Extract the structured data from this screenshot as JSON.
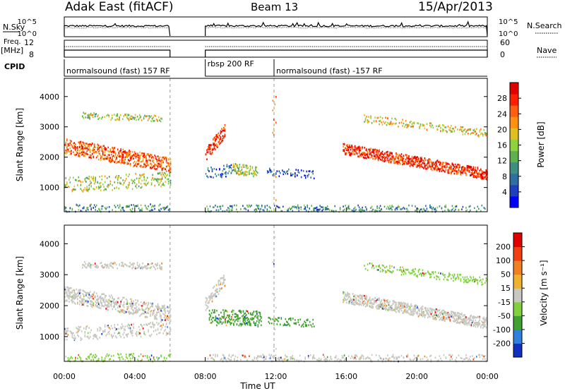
{
  "header": {
    "station": "Adak East (fitACF)",
    "beam": "Beam 13",
    "date": "15/Apr/2013"
  },
  "chart_data": [
    {
      "type": "line",
      "panel": "noise",
      "left_label": "N.Sky",
      "right_label": "N.Search",
      "left_ticks": [
        "10^5",
        "10^0"
      ],
      "right_ticks": [
        "10^5",
        "10^0"
      ],
      "x": [
        0,
        6,
        8,
        24
      ],
      "gap": [
        6,
        8
      ],
      "series": [
        {
          "name": "N.Sky",
          "style": "solid"
        },
        {
          "name": "N.Search",
          "style": "dotted"
        }
      ]
    },
    {
      "type": "line",
      "panel": "frequency",
      "left_label_top": "Freq.",
      "left_label_bottom": "[MHz]",
      "right_label": "Nave",
      "left_ticks": [
        "12",
        "8"
      ],
      "right_ticks": [
        "60",
        "0"
      ],
      "gap": [
        6,
        8
      ],
      "series": [
        {
          "name": "Freq.",
          "style": "solid"
        },
        {
          "name": "Nave",
          "style": "dotted"
        }
      ]
    },
    {
      "type": "table",
      "panel": "cpid",
      "label": "CPID",
      "segments": [
        {
          "start": 0,
          "end": 6,
          "label": "normalsound (fast) 157 RF"
        },
        {
          "start": 8,
          "end": 11.9,
          "label": "rbsp 200 RF"
        },
        {
          "start": 11.9,
          "end": 24,
          "label": "normalsound (fast) -157 RF"
        }
      ]
    },
    {
      "type": "heatmap",
      "panel": "power",
      "ylabel": "Slant Range [km]",
      "xlim": [
        0,
        24
      ],
      "ylim": [
        200,
        4600
      ],
      "yticks": [
        1000,
        2000,
        3000,
        4000
      ],
      "colorbar_label": "Power [dB]",
      "colorbar_ticks": [
        "28",
        "24",
        "20",
        "16",
        "12",
        "8",
        "4"
      ],
      "colors": [
        "#0000ff",
        "#1f3fbf",
        "#2f6fa0",
        "#3f8f7f",
        "#5fb04f",
        "#8fd03f",
        "#e0c020",
        "#ff9010",
        "#ff6010",
        "#ff2000",
        "#e00000"
      ]
    },
    {
      "type": "heatmap",
      "panel": "velocity",
      "ylabel": "Slant Range [km]",
      "xlabel": "Time UT",
      "xlim": [
        0,
        24
      ],
      "ylim": [
        200,
        4600
      ],
      "yticks": [
        1000,
        2000,
        3000,
        4000
      ],
      "xticks": [
        "00:00",
        "04:00",
        "08:00",
        "12:00",
        "16:00",
        "20:00",
        "00:00"
      ],
      "colorbar_label": "Velocity [m s⁻¹]",
      "colorbar_ticks": [
        "200",
        "100",
        "50",
        "15",
        "-15",
        "-50",
        "-100",
        "-200"
      ],
      "colors": [
        "#1030c0",
        "#3080e0",
        "#40a030",
        "#80d040",
        "#c8c8c0",
        "#f0b030",
        "#f08020",
        "#f04010",
        "#e00000"
      ]
    }
  ]
}
